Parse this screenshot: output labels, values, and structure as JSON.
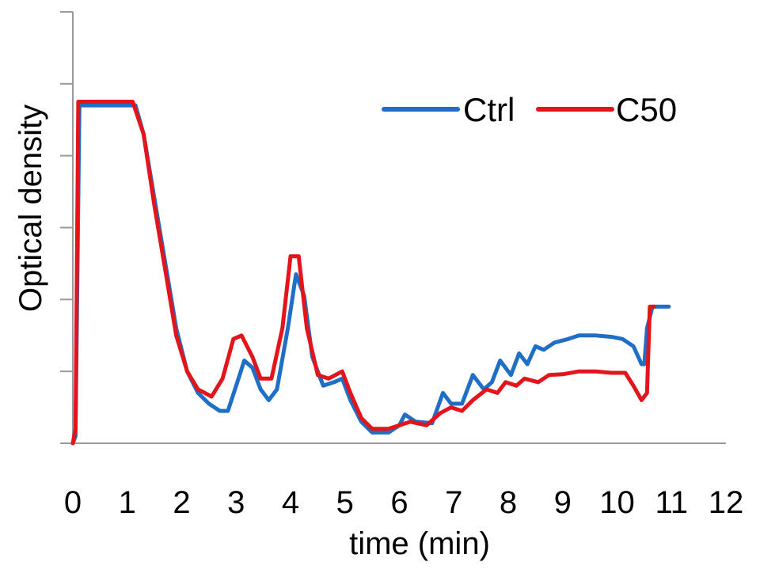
{
  "chart_data": {
    "type": "line",
    "title": "",
    "xlabel": "time (min)",
    "ylabel": "Optical density",
    "xlim": [
      0,
      12
    ],
    "ylim": [
      0,
      6
    ],
    "x_ticks": [
      0,
      1,
      2,
      3,
      4,
      5,
      6,
      7,
      8,
      9,
      10,
      11,
      12
    ],
    "x_tick_labels": [
      "0",
      "1",
      "2",
      "3",
      "4",
      "5",
      "6",
      "7",
      "8",
      "9",
      "10",
      "11",
      "12"
    ],
    "y_ticks": [
      0,
      1,
      2,
      3,
      4,
      5,
      6
    ],
    "y_tick_labels_shown": false,
    "grid": false,
    "legend": "top-right",
    "series": [
      {
        "name": "Ctrl",
        "color": "#1f6fc6",
        "points": [
          [
            0.0,
            0.0
          ],
          [
            0.05,
            0.1
          ],
          [
            0.12,
            4.7
          ],
          [
            0.6,
            4.7
          ],
          [
            1.15,
            4.7
          ],
          [
            1.3,
            4.3
          ],
          [
            1.5,
            3.4
          ],
          [
            1.7,
            2.5
          ],
          [
            1.9,
            1.6
          ],
          [
            2.1,
            1.0
          ],
          [
            2.3,
            0.7
          ],
          [
            2.5,
            0.55
          ],
          [
            2.7,
            0.45
          ],
          [
            2.85,
            0.45
          ],
          [
            3.0,
            0.8
          ],
          [
            3.15,
            1.15
          ],
          [
            3.3,
            1.05
          ],
          [
            3.45,
            0.75
          ],
          [
            3.6,
            0.6
          ],
          [
            3.75,
            0.75
          ],
          [
            3.95,
            1.6
          ],
          [
            4.1,
            2.35
          ],
          [
            4.25,
            2.05
          ],
          [
            4.4,
            1.2
          ],
          [
            4.6,
            0.8
          ],
          [
            4.8,
            0.85
          ],
          [
            4.95,
            0.9
          ],
          [
            5.1,
            0.6
          ],
          [
            5.3,
            0.3
          ],
          [
            5.5,
            0.15
          ],
          [
            5.8,
            0.15
          ],
          [
            6.0,
            0.25
          ],
          [
            6.1,
            0.4
          ],
          [
            6.3,
            0.3
          ],
          [
            6.6,
            0.28
          ],
          [
            6.8,
            0.7
          ],
          [
            6.95,
            0.55
          ],
          [
            7.15,
            0.55
          ],
          [
            7.35,
            0.95
          ],
          [
            7.55,
            0.75
          ],
          [
            7.7,
            0.85
          ],
          [
            7.85,
            1.15
          ],
          [
            8.05,
            0.95
          ],
          [
            8.2,
            1.25
          ],
          [
            8.35,
            1.1
          ],
          [
            8.5,
            1.35
          ],
          [
            8.65,
            1.3
          ],
          [
            8.85,
            1.4
          ],
          [
            9.1,
            1.45
          ],
          [
            9.3,
            1.5
          ],
          [
            9.6,
            1.5
          ],
          [
            9.9,
            1.48
          ],
          [
            10.1,
            1.45
          ],
          [
            10.3,
            1.35
          ],
          [
            10.45,
            1.1
          ],
          [
            10.5,
            1.1
          ],
          [
            10.55,
            1.6
          ],
          [
            10.65,
            1.9
          ],
          [
            10.95,
            1.9
          ]
        ]
      },
      {
        "name": "C50",
        "color": "#e3141b",
        "points": [
          [
            0.0,
            0.0
          ],
          [
            0.05,
            0.2
          ],
          [
            0.1,
            4.75
          ],
          [
            0.6,
            4.75
          ],
          [
            1.1,
            4.75
          ],
          [
            1.3,
            4.3
          ],
          [
            1.5,
            3.3
          ],
          [
            1.7,
            2.4
          ],
          [
            1.9,
            1.5
          ],
          [
            2.1,
            1.0
          ],
          [
            2.3,
            0.75
          ],
          [
            2.55,
            0.65
          ],
          [
            2.75,
            0.9
          ],
          [
            2.95,
            1.45
          ],
          [
            3.1,
            1.5
          ],
          [
            3.3,
            1.2
          ],
          [
            3.45,
            0.9
          ],
          [
            3.65,
            0.9
          ],
          [
            3.85,
            1.6
          ],
          [
            4.0,
            2.6
          ],
          [
            4.15,
            2.6
          ],
          [
            4.3,
            1.6
          ],
          [
            4.5,
            0.95
          ],
          [
            4.7,
            0.9
          ],
          [
            4.95,
            1.0
          ],
          [
            5.1,
            0.7
          ],
          [
            5.3,
            0.35
          ],
          [
            5.5,
            0.2
          ],
          [
            5.8,
            0.2
          ],
          [
            6.0,
            0.25
          ],
          [
            6.2,
            0.3
          ],
          [
            6.5,
            0.25
          ],
          [
            6.75,
            0.42
          ],
          [
            6.95,
            0.5
          ],
          [
            7.15,
            0.45
          ],
          [
            7.35,
            0.6
          ],
          [
            7.6,
            0.75
          ],
          [
            7.8,
            0.7
          ],
          [
            7.95,
            0.85
          ],
          [
            8.15,
            0.8
          ],
          [
            8.3,
            0.9
          ],
          [
            8.55,
            0.85
          ],
          [
            8.75,
            0.95
          ],
          [
            9.0,
            0.96
          ],
          [
            9.3,
            1.0
          ],
          [
            9.6,
            1.0
          ],
          [
            9.9,
            0.98
          ],
          [
            10.15,
            0.98
          ],
          [
            10.3,
            0.8
          ],
          [
            10.45,
            0.6
          ],
          [
            10.55,
            0.7
          ],
          [
            10.6,
            1.9
          ],
          [
            10.68,
            1.9
          ]
        ]
      }
    ]
  }
}
